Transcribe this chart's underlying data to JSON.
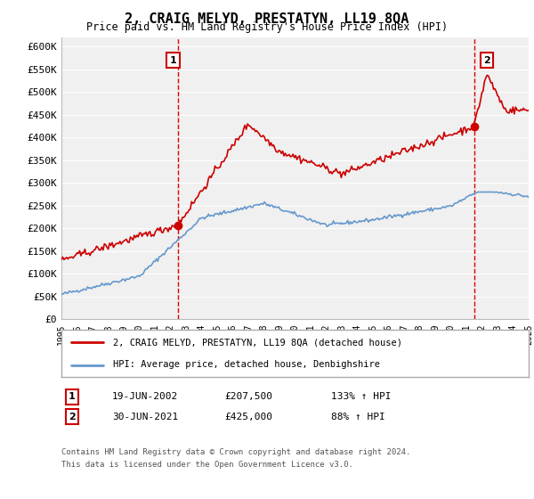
{
  "title": "2, CRAIG MELYD, PRESTATYN, LL19 8QA",
  "subtitle": "Price paid vs. HM Land Registry's House Price Index (HPI)",
  "ylabel_ticks": [
    "£0",
    "£50K",
    "£100K",
    "£150K",
    "£200K",
    "£250K",
    "£300K",
    "£350K",
    "£400K",
    "£450K",
    "£500K",
    "£550K",
    "£600K"
  ],
  "ytick_values": [
    0,
    50000,
    100000,
    150000,
    200000,
    250000,
    300000,
    350000,
    400000,
    450000,
    500000,
    550000,
    600000
  ],
  "ylim": [
    0,
    620000
  ],
  "xlim_years": [
    1995,
    2025
  ],
  "legend_line1": "2, CRAIG MELYD, PRESTATYN, LL19 8QA (detached house)",
  "legend_line2": "HPI: Average price, detached house, Denbighshire",
  "sale1_date": "19-JUN-2002",
  "sale1_price": "£207,500",
  "sale1_hpi": "133% ↑ HPI",
  "sale2_date": "30-JUN-2021",
  "sale2_price": "£425,000",
  "sale2_hpi": "88% ↑ HPI",
  "footnote1": "Contains HM Land Registry data © Crown copyright and database right 2024.",
  "footnote2": "This data is licensed under the Open Government Licence v3.0.",
  "red_color": "#cc0000",
  "blue_color": "#6699cc",
  "dashed_red": "#dd0000",
  "background_plot": "#f0f0f0",
  "grid_color": "#ffffff",
  "sale1_x_year": 2002.47,
  "sale2_x_year": 2021.5
}
